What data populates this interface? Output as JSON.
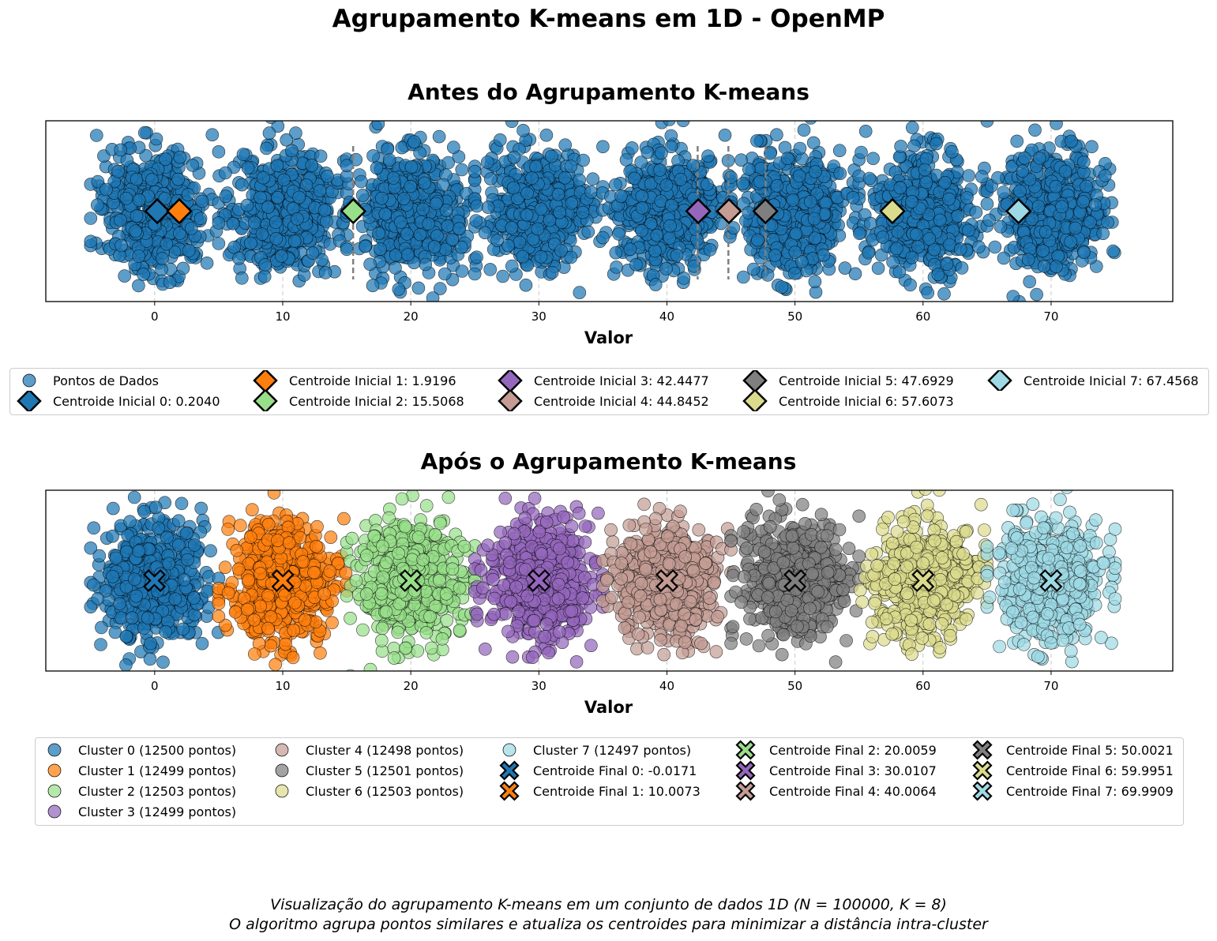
{
  "figure": {
    "suptitle": "Agrupamento K-means em 1D - OpenMP",
    "caption_line1": "Visualização do agrupamento K-means em um conjunto de dados 1D (N = 100000, K = 8)",
    "caption_line2": "O algoritmo agrupa pontos similares e atualiza os centroides para minimizar a distância intra-cluster"
  },
  "chart_data": [
    {
      "type": "scatter",
      "title": "Antes do Agrupamento K-means",
      "xlabel": "Valor",
      "ylabel": "",
      "xlim": [
        -8.5,
        79.5
      ],
      "xticks": [
        0,
        10,
        20,
        30,
        40,
        50,
        60,
        70
      ],
      "grid": "vertical dashed",
      "legend_position": "below",
      "data_points": {
        "name": "Pontos de Dados",
        "color": "#1f77b4",
        "cluster_centers": [
          0,
          10,
          20,
          30,
          40,
          50,
          60,
          70
        ],
        "spread": 2.2
      },
      "centroids": [
        {
          "label": "Centroide Inicial 0: 0.2040",
          "x": 0.204,
          "color": "#1f77b4"
        },
        {
          "label": "Centroide Inicial 1: 1.9196",
          "x": 1.9196,
          "color": "#ff7f0e"
        },
        {
          "label": "Centroide Inicial 2: 15.5068",
          "x": 15.5068,
          "color": "#98df8a"
        },
        {
          "label": "Centroide Inicial 3: 42.4477",
          "x": 42.4477,
          "color": "#9467bd"
        },
        {
          "label": "Centroide Inicial 4: 44.8452",
          "x": 44.8452,
          "color": "#c49c94"
        },
        {
          "label": "Centroide Inicial 5: 47.6929",
          "x": 47.6929,
          "color": "#7f7f7f"
        },
        {
          "label": "Centroide Inicial 6: 57.6073",
          "x": 57.6073,
          "color": "#dbdb8d"
        },
        {
          "label": "Centroide Inicial 7: 67.4568",
          "x": 67.4568,
          "color": "#9edae5"
        }
      ],
      "boundaries": [
        15.5,
        42.4,
        44.8,
        47.7
      ]
    },
    {
      "type": "scatter",
      "title": "Após o Agrupamento K-means",
      "xlabel": "Valor",
      "ylabel": "",
      "xlim": [
        -8.5,
        79.5
      ],
      "xticks": [
        0,
        10,
        20,
        30,
        40,
        50,
        60,
        70
      ],
      "grid": "vertical dashed",
      "legend_position": "below",
      "clusters": [
        {
          "label": "Cluster 0 (12500 pontos)",
          "center": 0,
          "color": "#1f77b4"
        },
        {
          "label": "Cluster 1 (12499 pontos)",
          "center": 10,
          "color": "#ff7f0e"
        },
        {
          "label": "Cluster 2 (12503 pontos)",
          "center": 20,
          "color": "#98df8a"
        },
        {
          "label": "Cluster 3 (12499 pontos)",
          "center": 30,
          "color": "#9467bd"
        },
        {
          "label": "Cluster 4 (12498 pontos)",
          "center": 40,
          "color": "#c49c94"
        },
        {
          "label": "Cluster 5 (12501 pontos)",
          "center": 50,
          "color": "#7f7f7f"
        },
        {
          "label": "Cluster 6 (12503 pontos)",
          "center": 60,
          "color": "#dbdb8d"
        },
        {
          "label": "Cluster 7 (12497 pontos)",
          "center": 70,
          "color": "#9edae5"
        }
      ],
      "centroids": [
        {
          "label": "Centroide Final 0: -0.0171",
          "x": -0.0171,
          "color": "#1f77b4"
        },
        {
          "label": "Centroide Final 1: 10.0073",
          "x": 10.0073,
          "color": "#ff7f0e"
        },
        {
          "label": "Centroide Final 2: 20.0059",
          "x": 20.0059,
          "color": "#98df8a"
        },
        {
          "label": "Centroide Final 3: 30.0107",
          "x": 30.0107,
          "color": "#9467bd"
        },
        {
          "label": "Centroide Final 4: 40.0064",
          "x": 40.0064,
          "color": "#c49c94"
        },
        {
          "label": "Centroide Final 5: 50.0021",
          "x": 50.0021,
          "color": "#7f7f7f"
        },
        {
          "label": "Centroide Final 6: 59.9951",
          "x": 59.9951,
          "color": "#dbdb8d"
        },
        {
          "label": "Centroide Final 7: 69.9909",
          "x": 69.9909,
          "color": "#9edae5"
        }
      ],
      "boundaries": []
    }
  ]
}
